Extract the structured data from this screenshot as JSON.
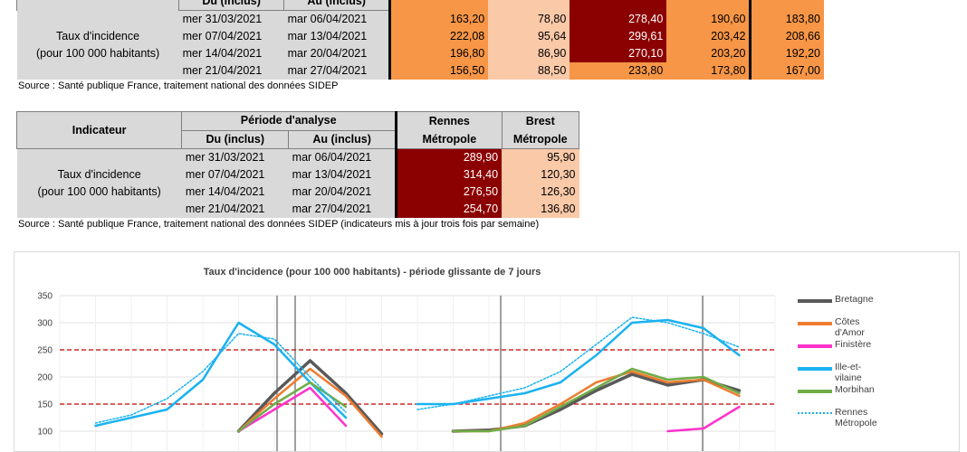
{
  "table1": {
    "header_partial": {
      "du": "Du (inclus)",
      "au": "Au (inclus)"
    },
    "row_label": [
      "Taux d'incidence",
      "(pour 100 000 habitants)"
    ],
    "rows": [
      {
        "du": "mer 31/03/2021",
        "au": "mar 06/04/2021",
        "v": [
          "163,20",
          "78,80",
          "278,40",
          "190,60",
          "183,80"
        ]
      },
      {
        "du": "mer 07/04/2021",
        "au": "mar 13/04/2021",
        "v": [
          "222,08",
          "95,64",
          "299,61",
          "203,42",
          "208,66"
        ]
      },
      {
        "du": "mer 14/04/2021",
        "au": "mar 20/04/2021",
        "v": [
          "196,80",
          "86,90",
          "270,10",
          "203,20",
          "192,20"
        ]
      },
      {
        "du": "mer 21/04/2021",
        "au": "mar 27/04/2021",
        "v": [
          "156,50",
          "88,50",
          "233,80",
          "173,80",
          "167,00"
        ]
      }
    ],
    "source": "Source  : Santé publique France, traitement national des données SIDEP"
  },
  "table2": {
    "indicateur": "Indicateur",
    "periode": "Période d'analyse",
    "du": "Du (inclus)",
    "au": "Au (inclus)",
    "col1": [
      "Rennes",
      "Métropole"
    ],
    "col2": [
      "Brest",
      "Métropole"
    ],
    "row_label": [
      "Taux d'incidence",
      "(pour 100 000 habitants)"
    ],
    "rows": [
      {
        "du": "mer 31/03/2021",
        "au": "mar 06/04/2021",
        "v": [
          "289,90",
          "95,90"
        ]
      },
      {
        "du": "mer 07/04/2021",
        "au": "mar 13/04/2021",
        "v": [
          "314,40",
          "120,30"
        ]
      },
      {
        "du": "mer 14/04/2021",
        "au": "mar 20/04/2021",
        "v": [
          "276,50",
          "126,30"
        ]
      },
      {
        "du": "mer 21/04/2021",
        "au": "mar 27/04/2021",
        "v": [
          "254,70",
          "136,80"
        ]
      }
    ],
    "source": "Source  : Santé publique France, traitement national des données SIDEP (indicateurs mis à jour trois fois par semaine)"
  },
  "colors": {
    "orange": "#f79646",
    "light": "#f9c9a8",
    "dark": "#8b0000"
  },
  "chart_data": {
    "type": "line",
    "title": "Taux d'incidence (pour 100 000 habitants) - période glissante de 7 jours",
    "ylim": [
      100,
      350
    ],
    "yticks": [
      100,
      150,
      200,
      250,
      300,
      350
    ],
    "grid": true,
    "legend_position": "right",
    "reference_lines": [
      250,
      150
    ],
    "x": [
      0,
      5,
      10,
      15,
      20,
      25,
      30,
      35,
      40,
      45,
      50,
      55,
      60,
      65,
      70,
      75,
      80,
      85,
      90,
      95,
      100
    ],
    "series": [
      {
        "name": "Bretagne",
        "color": "#595959",
        "values": [
          null,
          null,
          null,
          null,
          null,
          100,
          170,
          230,
          170,
          95,
          null,
          100,
          102,
          110,
          140,
          175,
          205,
          185,
          195,
          175,
          null
        ]
      },
      {
        "name": "Côtes d'Amor",
        "color": "#ed7d31",
        "values": [
          null,
          null,
          null,
          null,
          null,
          100,
          160,
          215,
          165,
          90,
          null,
          100,
          100,
          115,
          150,
          190,
          210,
          190,
          195,
          165,
          null
        ]
      },
      {
        "name": "Finistère",
        "color": "#ff33cc",
        "values": [
          null,
          null,
          null,
          null,
          null,
          100,
          140,
          180,
          110,
          null,
          null,
          null,
          null,
          null,
          null,
          null,
          null,
          100,
          105,
          145,
          null
        ]
      },
      {
        "name": "Ille-et-vilaine",
        "color": "#1ab2f0",
        "values": [
          null,
          110,
          125,
          140,
          195,
          300,
          260,
          190,
          125,
          null,
          150,
          150,
          160,
          170,
          190,
          240,
          300,
          305,
          290,
          240,
          null
        ]
      },
      {
        "name": "Morbihan",
        "color": "#70ad47",
        "values": [
          null,
          null,
          null,
          null,
          null,
          100,
          150,
          190,
          145,
          null,
          null,
          100,
          100,
          110,
          145,
          180,
          215,
          195,
          200,
          170,
          null
        ]
      },
      {
        "name": "Rennes Métropole",
        "color": "#1ab2f0",
        "values": [
          null,
          115,
          130,
          160,
          210,
          280,
          270,
          200,
          135,
          null,
          140,
          150,
          165,
          180,
          210,
          260,
          310,
          300,
          280,
          255,
          null
        ]
      }
    ]
  }
}
